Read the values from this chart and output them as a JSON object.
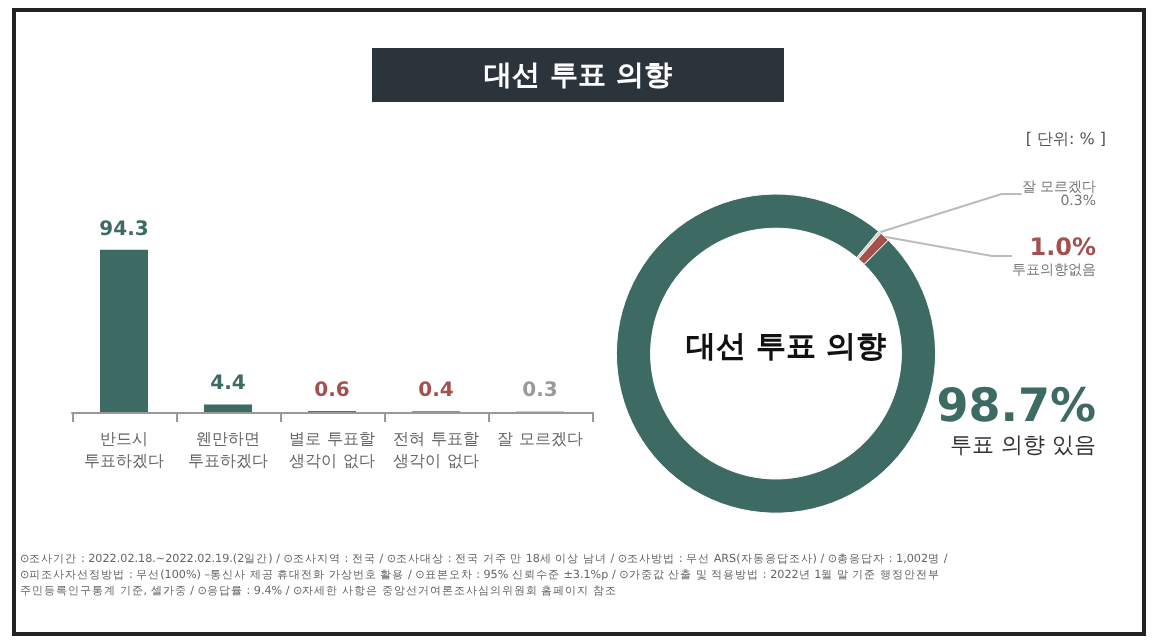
{
  "chart_data": [
    {
      "type": "bar",
      "title": "대선 투표 의향",
      "categories": [
        "반드시\n투표하겠다",
        "웬만하면\n투표하겠다",
        "별로 투표할\n생각이 없다",
        "전혀 투표할\n생각이 없다",
        "잘 모르겠다"
      ],
      "values": [
        94.3,
        4.4,
        0.6,
        0.4,
        0.3
      ],
      "colors": [
        "#3d6b63",
        "#3d6b63",
        "#a4504f",
        "#a4504f",
        "#9a9a9a"
      ],
      "data_labels": true,
      "legend": false,
      "annotations": [
        "[ 단위: % ]",
        "⊙조사기간 : 2022.02.18.~2022.02.19.(2일간) / ⊙조사지역 : 전국 / ⊙조사대상 : 전국 거주 만 18세 이상 남녀 / ⊙조사방법 : 무선 ARS(자동응답조사) / ⊙총응답자 : 1,002명 /",
        "⊙피조사자선정방법 : 무선(100%) –통신사 제공 휴대전화 가상번호 활용 / ⊙표본오차 : 95% 신뢰수준 ±3.1%p / ⊙가중값 산출 및 적용방법 : 2022년 1월 말 기준 행정안전부",
        "주민등록인구통계 기준, 셀가중 / ⊙응답률 : 9.4% / ⊙자세한 사항은 중앙선거여론조사심의위원회 홈페이지 참조"
      ]
    },
    {
      "type": "donut",
      "title": "대선 투표 의향",
      "categories": [
        "잘 모르겠다",
        "투표의향없음",
        "투표 의향 있음"
      ],
      "values": [
        0.3,
        1.0,
        98.7
      ],
      "colors": [
        "#d9cfc4",
        "#a4504f",
        "#3d6b63"
      ],
      "value_labels": [
        "0.3%",
        "1.0%",
        "98.7%"
      ],
      "legend": false
    }
  ]
}
